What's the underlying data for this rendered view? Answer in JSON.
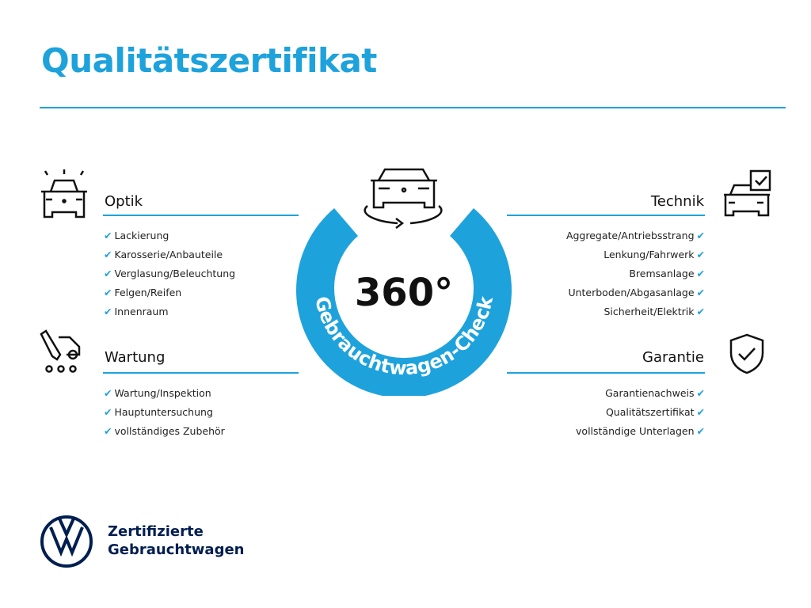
{
  "title": "Qualitätszertifikat",
  "center": {
    "degrees": "360°",
    "arc_text": "Gebrauchtwagen-Check"
  },
  "sections": {
    "optik": {
      "heading": "Optik",
      "items": [
        "Lackierung",
        "Karosserie/Anbauteile",
        "Verglasung/Beleuchtung",
        "Felgen/Reifen",
        "Innenraum"
      ]
    },
    "wartung": {
      "heading": "Wartung",
      "items": [
        "Wartung/Inspektion",
        "Hauptuntersuchung",
        "vollständiges Zubehör"
      ]
    },
    "technik": {
      "heading": "Technik",
      "items": [
        "Aggregate/Antriebsstrang",
        "Lenkung/Fahrwerk",
        "Bremsanlage",
        "Unterboden/Abgasanlage",
        "Sicherheit/Elektrik"
      ]
    },
    "garantie": {
      "heading": "Garantie",
      "items": [
        "Garantienachweis",
        "Qualitätszertifikat",
        "vollständige Unterlagen"
      ]
    }
  },
  "brand": {
    "line1": "Zertifizierte",
    "line2": "Gebrauchtwagen",
    "logo": "VW"
  },
  "colors": {
    "accent": "#1ea2dc",
    "navy": "#001e50"
  }
}
